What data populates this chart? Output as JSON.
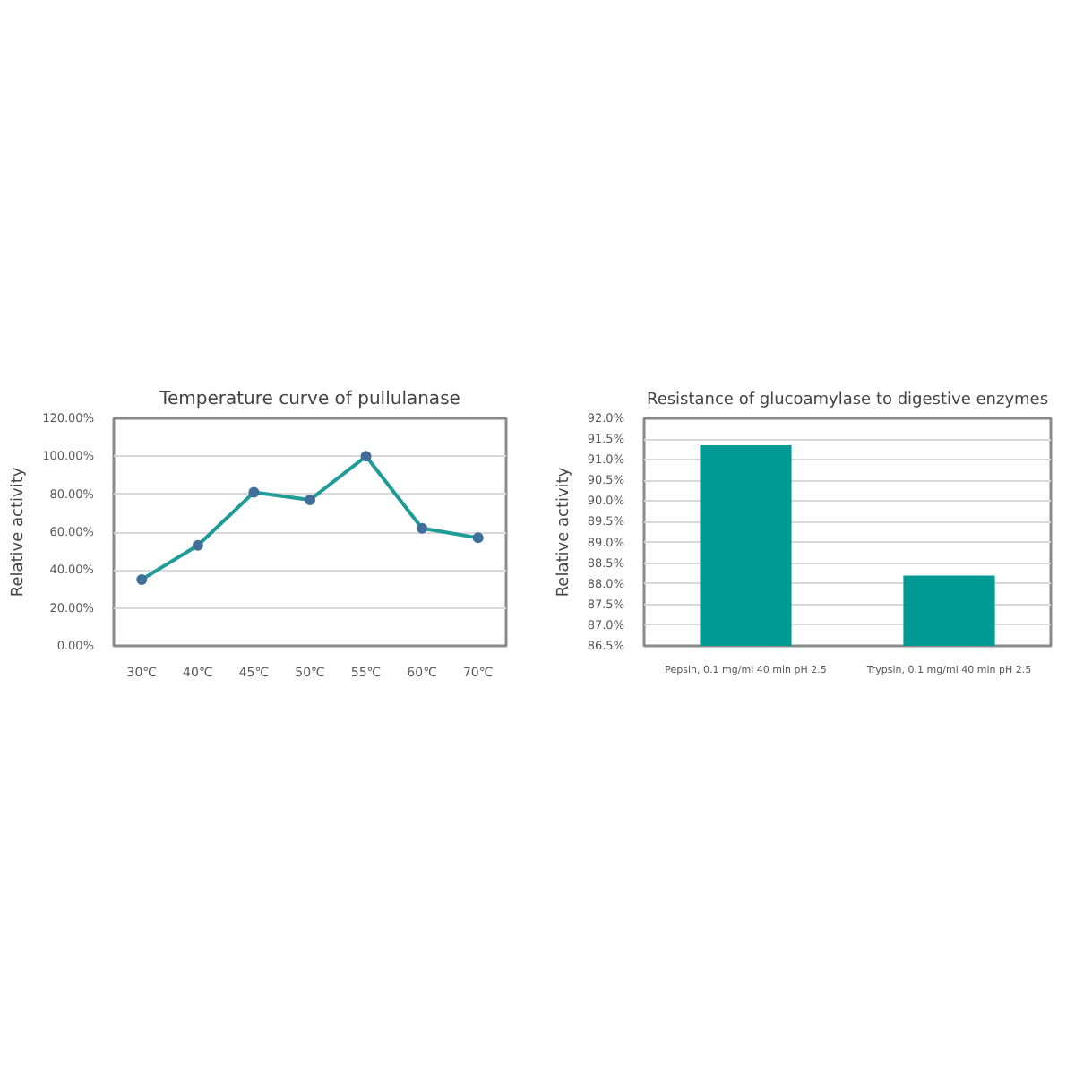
{
  "chart_data": [
    {
      "type": "line",
      "title": "Temperature curve of pullulanase",
      "ylabel": "Relative activity",
      "categories": [
        "30℃",
        "40℃",
        "45℃",
        "50℃",
        "55℃",
        "60℃",
        "70℃"
      ],
      "series": [
        {
          "color": "#1f9b98",
          "values": [
            35,
            53,
            81,
            77,
            100,
            62,
            57
          ]
        }
      ],
      "ylim": [
        0,
        120
      ],
      "yticks": [
        {
          "value": 0,
          "label": "0.00%"
        },
        {
          "value": 20,
          "label": "20.00%"
        },
        {
          "value": 40,
          "label": "40.00%"
        },
        {
          "value": 60,
          "label": "60.00%"
        },
        {
          "value": 80,
          "label": "80.00%"
        },
        {
          "value": 100,
          "label": "100.00%"
        },
        {
          "value": 120,
          "label": "120.00%"
        }
      ],
      "grid": "y",
      "marker": "circle",
      "line_style": "solid"
    },
    {
      "type": "bar",
      "title": "Resistance of glucoamylase to digestive enzymes",
      "ylabel": "Relative activity",
      "categories": [
        "Pepsin, 0.1 mg/ml 40 min pH 2.5",
        "Trypsin, 0.1 mg/ml 40 min pH 2.5"
      ],
      "series": [
        {
          "color": "#009a94",
          "values": [
            91.35,
            88.2
          ]
        }
      ],
      "ylim": [
        86.5,
        92
      ],
      "yticks": [
        {
          "value": 86.5,
          "label": "86.5%"
        },
        {
          "value": 87,
          "label": "87.0%"
        },
        {
          "value": 87.5,
          "label": "87.5%"
        },
        {
          "value": 88,
          "label": "88.0%"
        },
        {
          "value": 88.5,
          "label": "88.5%"
        },
        {
          "value": 89,
          "label": "89.0%"
        },
        {
          "value": 89.5,
          "label": "89.5%"
        },
        {
          "value": 90,
          "label": "90.0%"
        },
        {
          "value": 90.5,
          "label": "90.5%"
        },
        {
          "value": 91,
          "label": "91.0%"
        },
        {
          "value": 91.5,
          "label": "91.5%"
        },
        {
          "value": 92,
          "label": "92.0%"
        }
      ],
      "grid": "y"
    }
  ]
}
